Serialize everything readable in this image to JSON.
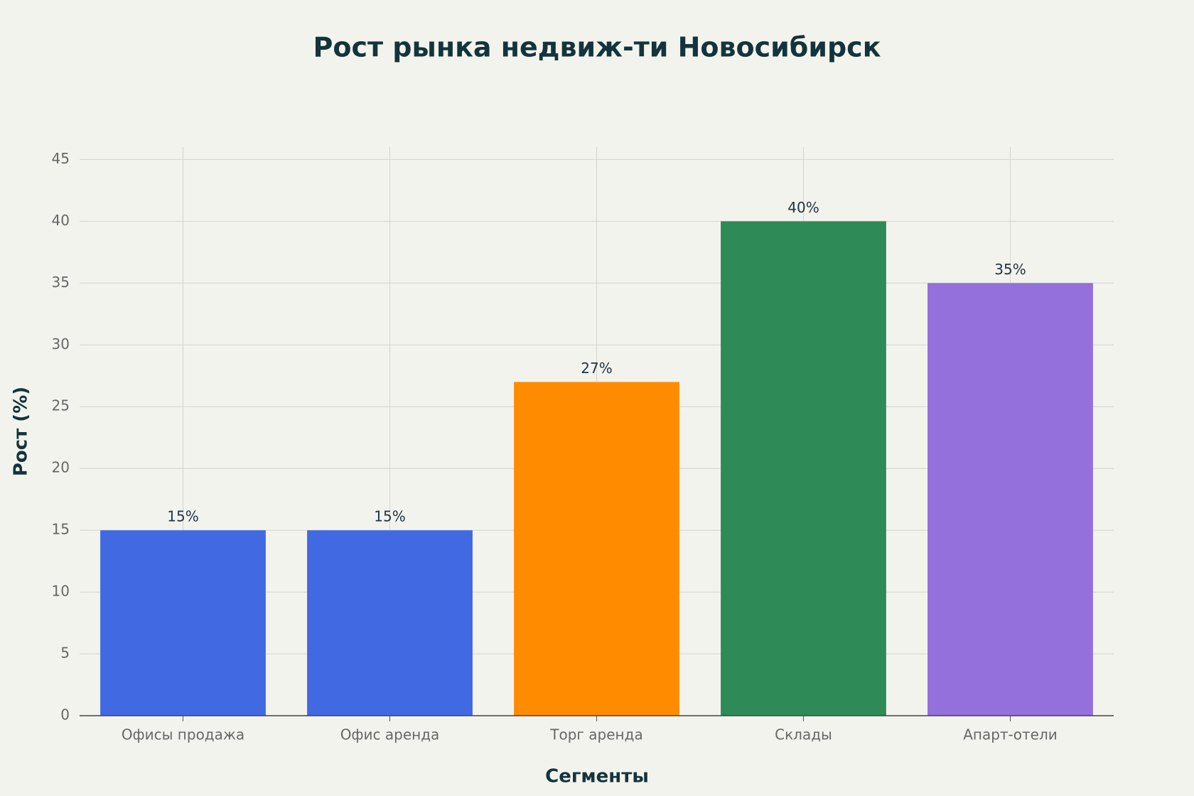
{
  "chart_data": {
    "type": "bar",
    "title": "Рост рынка недвиж-ти Новосибирск",
    "x_label": "Сегменты",
    "y_label": "Рост (%)",
    "categories": [
      "Офисы продажа",
      "Офис аренда",
      "Торг аренда",
      "Склады",
      "Апарт-отели"
    ],
    "values": [
      15,
      15,
      27,
      40,
      35
    ],
    "value_labels": [
      "15%",
      "15%",
      "27%",
      "40%",
      "35%"
    ],
    "colors": [
      "#4169e1",
      "#4169e1",
      "#ff8c00",
      "#2e8b57",
      "#9370db"
    ],
    "ylim": [
      0,
      46
    ],
    "yticks": [
      0,
      5,
      10,
      15,
      20,
      25,
      30,
      35,
      40,
      45
    ],
    "grid": true
  }
}
